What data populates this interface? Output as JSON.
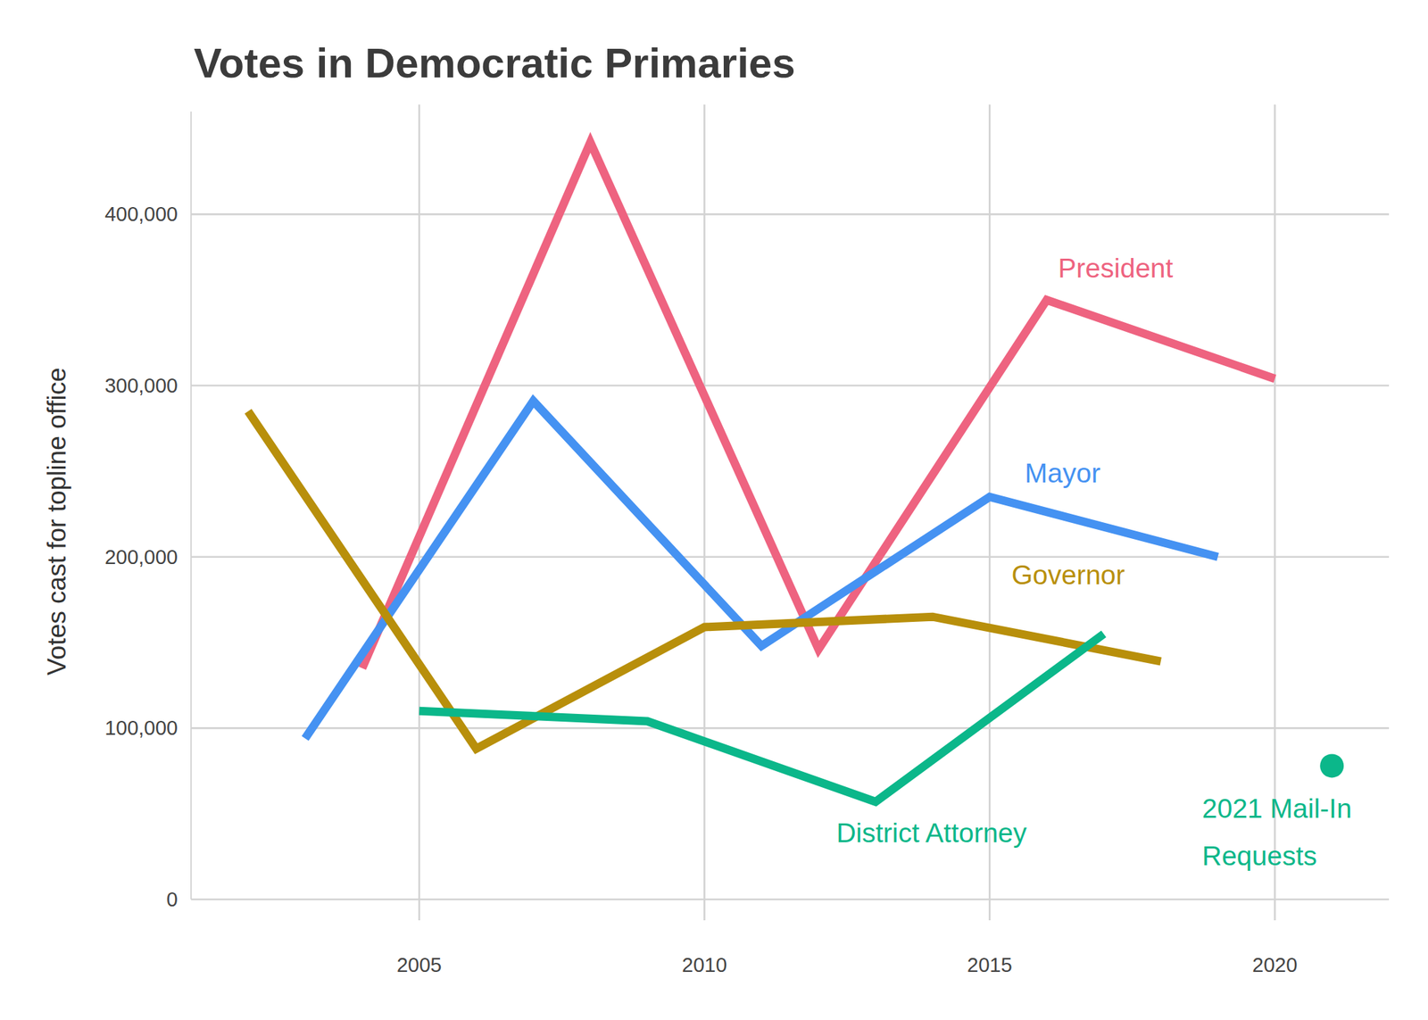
{
  "chart_data": {
    "type": "line",
    "title": "Votes in Democratic Primaries",
    "ylabel": "Votes cast for topline office",
    "xlim": [
      2001,
      2022
    ],
    "xticks": [
      2005,
      2010,
      2015,
      2020
    ],
    "ylim": [
      0,
      460000
    ],
    "yticks": [
      0,
      {
        "value": 100000,
        "label": "100,000"
      },
      {
        "value": 200000,
        "label": "200,000"
      },
      {
        "value": 300000,
        "label": "300,000"
      },
      {
        "value": 400000,
        "label": "400,000"
      }
    ],
    "grid": true,
    "series": [
      {
        "name": "President",
        "color": "#ee6380",
        "x": [
          2004,
          2008,
          2012,
          2016,
          2020
        ],
        "values": [
          135000,
          442000,
          146000,
          350000,
          304000
        ]
      },
      {
        "name": "Mayor",
        "color": "#4592f2",
        "x": [
          2003,
          2007,
          2011,
          2015,
          2019
        ],
        "values": [
          94000,
          291000,
          148000,
          235000,
          200000
        ]
      },
      {
        "name": "Governor",
        "color": "#b88f0b",
        "x": [
          2002,
          2006,
          2010,
          2014,
          2018
        ],
        "values": [
          285000,
          88000,
          159000,
          165000,
          139000
        ]
      },
      {
        "name": "District Attorney",
        "color": "#0bb78a",
        "x": [
          2005,
          2009,
          2013,
          2017
        ],
        "values": [
          110000,
          104000,
          57000,
          155000
        ]
      },
      {
        "name": "2021 Mail-In Requests",
        "color": "#0bb78a",
        "type": "scatter",
        "marker": "circle",
        "x": [
          2021
        ],
        "values": [
          78000
        ]
      }
    ]
  }
}
